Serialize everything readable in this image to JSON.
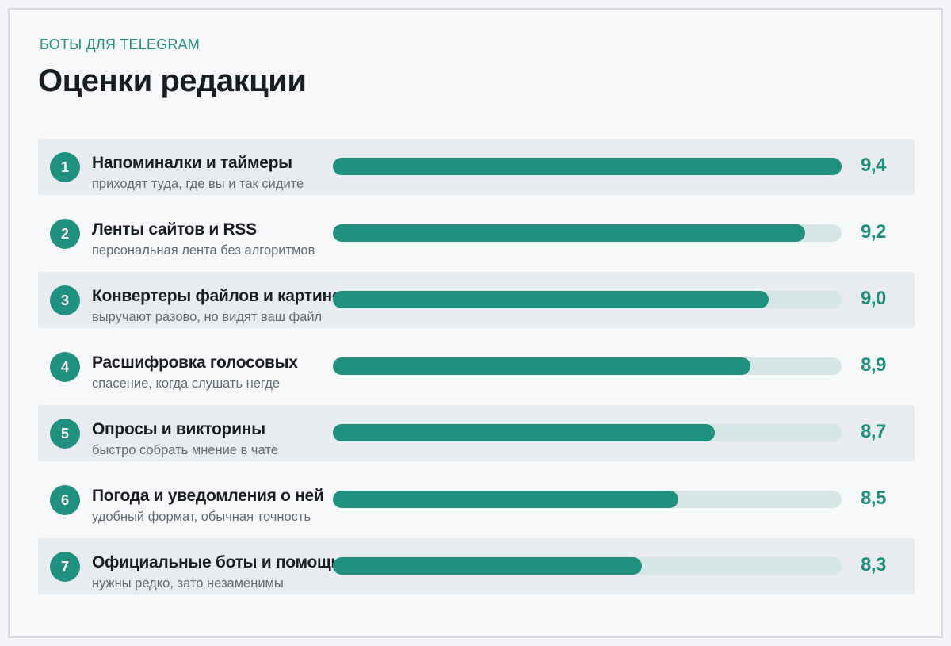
{
  "header": {
    "kicker": "БОТЫ ДЛЯ TELEGRAM",
    "title": "Оценки редакции"
  },
  "colors": {
    "accent": "#21917f",
    "track": "#d6e6e4",
    "row_shade": "#e8ebf0"
  },
  "chart_data": {
    "type": "bar",
    "orientation": "horizontal",
    "title": "Оценки редакции",
    "subtitle": "БОТЫ ДЛЯ TELEGRAM",
    "xlim": [
      0,
      9.4
    ],
    "categories": [
      "Напоминалки и таймеры",
      "Ленты сайтов и RSS",
      "Конвертеры файлов и картинок",
      "Расшифровка голосовых",
      "Опросы и викторины",
      "Погода и уведомления о ней",
      "Официальные боты и помощники"
    ],
    "values": [
      9.4,
      9.2,
      9.0,
      8.9,
      8.7,
      8.5,
      8.3
    ],
    "items": [
      {
        "rank": "1",
        "name": "Напоминалки и таймеры",
        "desc": "приходят туда, где вы и так сидите",
        "score": "9,4",
        "value": 9.4
      },
      {
        "rank": "2",
        "name": "Ленты сайтов и RSS",
        "desc": "персональная лента без алгоритмов",
        "score": "9,2",
        "value": 9.2
      },
      {
        "rank": "3",
        "name": "Конвертеры файлов и картинок",
        "desc": "выручают разово, но видят ваш файл",
        "score": "9,0",
        "value": 9.0
      },
      {
        "rank": "4",
        "name": "Расшифровка голосовых",
        "desc": "спасение, когда слушать негде",
        "score": "8,9",
        "value": 8.9
      },
      {
        "rank": "5",
        "name": "Опросы и викторины",
        "desc": "быстро собрать мнение в чате",
        "score": "8,7",
        "value": 8.7
      },
      {
        "rank": "6",
        "name": "Погода и уведомления о ней",
        "desc": "удобный формат, обычная точность",
        "score": "8,5",
        "value": 8.5
      },
      {
        "rank": "7",
        "name": "Официальные боты и помощники",
        "desc": "нужны редко, зато незаменимы",
        "score": "8,3",
        "value": 8.3
      }
    ]
  }
}
